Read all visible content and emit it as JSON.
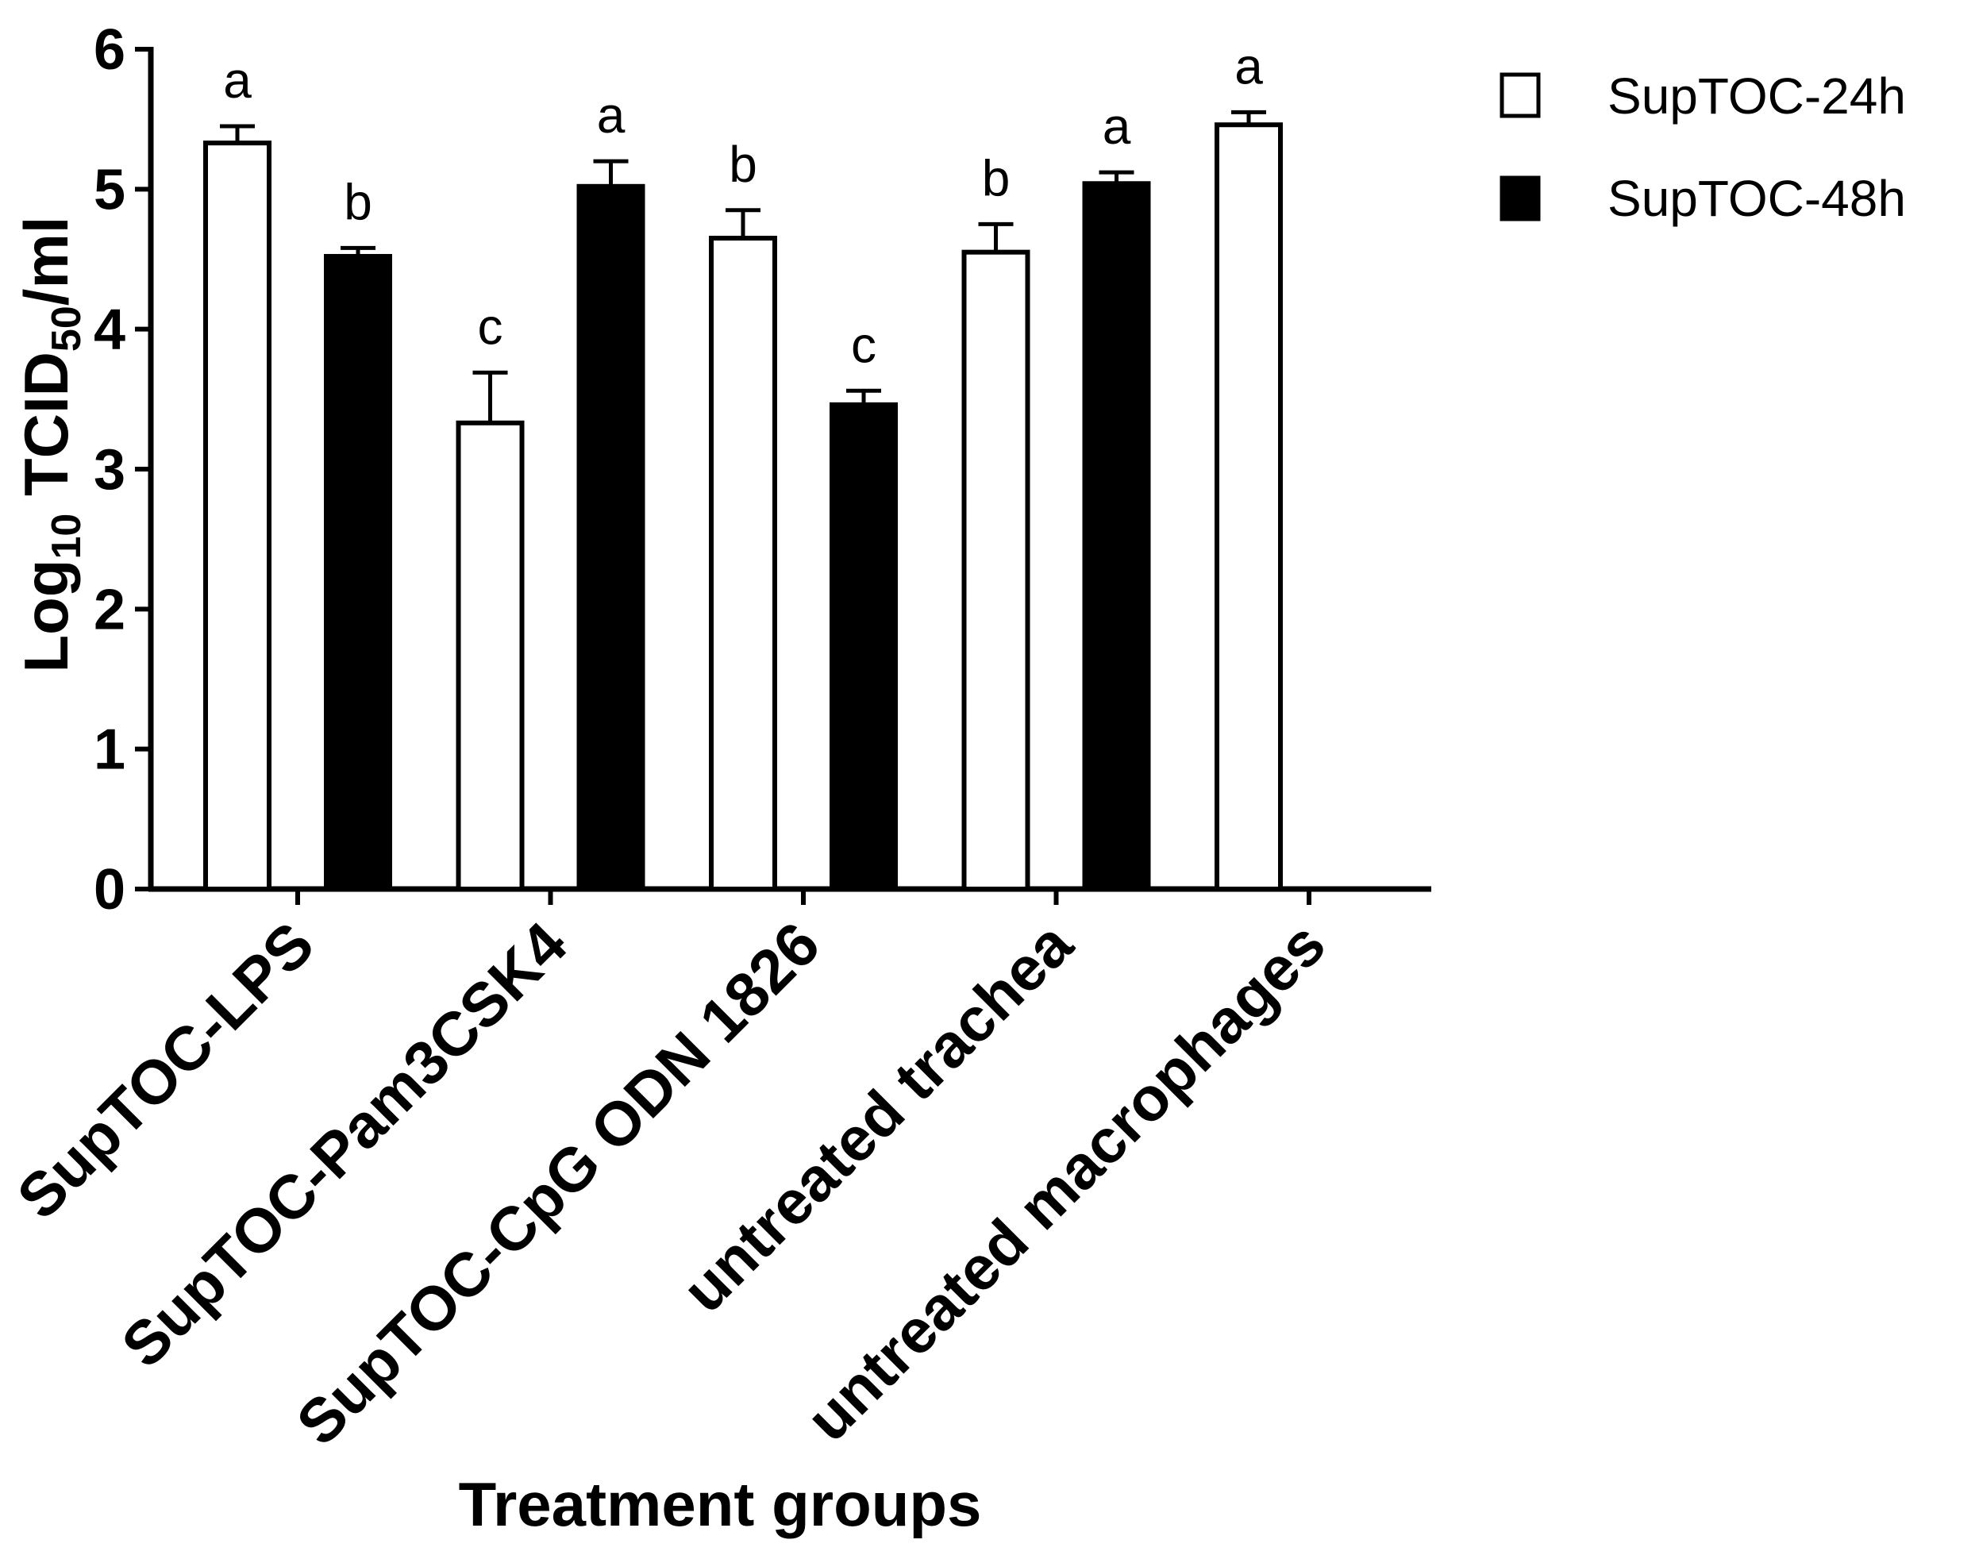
{
  "chart_data": {
    "type": "bar",
    "categories": [
      "SupTOC-LPS",
      "SupTOC-Pam3CSK4",
      "SupTOC-CpG ODN 1826",
      "untreated trachea",
      "untreated macrophages"
    ],
    "series": [
      {
        "name": "SupTOC-24h",
        "color": "#ffffff",
        "values": [
          5.33,
          3.33,
          4.65,
          4.55,
          5.46
        ],
        "errors": [
          0.12,
          0.36,
          0.2,
          0.2,
          0.09
        ],
        "letters": [
          "a",
          "c",
          "b",
          "b",
          "a"
        ]
      },
      {
        "name": "SupTOC-48h",
        "color": "#000000",
        "values": [
          4.52,
          5.02,
          3.46,
          5.04,
          null
        ],
        "errors": [
          0.06,
          0.18,
          0.1,
          0.08,
          null
        ],
        "letters": [
          "b",
          "a",
          "c",
          "a",
          null
        ]
      }
    ],
    "ylabel_main": "Log",
    "ylabel_sub1": "10",
    "ylabel_mid": " TCID",
    "ylabel_sub2": "50",
    "ylabel_tail": "/ml",
    "xlabel": "Treatment groups",
    "ylim": [
      0,
      6
    ],
    "yticks": [
      0,
      1,
      2,
      3,
      4,
      5,
      6
    ],
    "grid": false,
    "legend_position": "top-right"
  }
}
